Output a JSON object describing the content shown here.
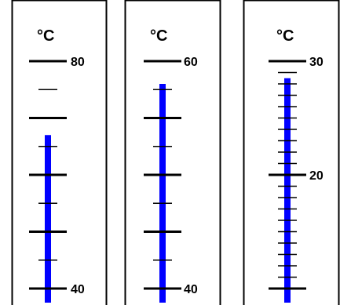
{
  "thermometers": [
    {
      "unit": "°C",
      "min": 40,
      "max": 80,
      "reading": 67,
      "labels": [
        {
          "value": 80,
          "text": "80"
        },
        {
          "value": 40,
          "text": "40"
        }
      ],
      "major_ticks": [
        80,
        70,
        60,
        50,
        40
      ],
      "minor_ticks": [
        75,
        65,
        55,
        45
      ]
    },
    {
      "unit": "°C",
      "min": 40,
      "max": 60,
      "reading": 58,
      "labels": [
        {
          "value": 60,
          "text": "60"
        },
        {
          "value": 40,
          "text": "40"
        }
      ],
      "major_ticks": [
        60,
        55,
        50,
        45,
        40
      ],
      "minor_ticks": [
        57.5,
        52.5,
        47.5,
        42.5
      ]
    },
    {
      "unit": "°C",
      "min": 10,
      "max": 30,
      "reading": 28.5,
      "labels": [
        {
          "value": 30,
          "text": "30"
        },
        {
          "value": 20,
          "text": "20"
        }
      ],
      "major_ticks": [
        30,
        20,
        10
      ],
      "minor_ticks": [
        29,
        28,
        27,
        26,
        25,
        24,
        23,
        22,
        21,
        19,
        18,
        17,
        16,
        15,
        14,
        13,
        12,
        11
      ]
    }
  ],
  "colors": {
    "liquid": "#0000ff",
    "ticks": "#000000",
    "frame": "#000000"
  }
}
